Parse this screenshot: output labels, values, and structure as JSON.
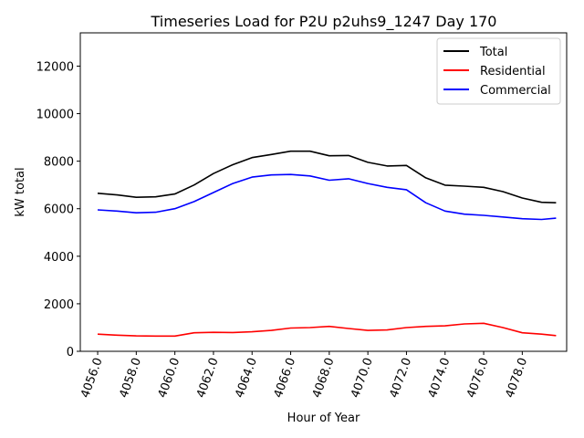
{
  "chart_data": {
    "type": "line",
    "title": "Timeseries Load for P2U p2uhs9_1247  Day 170",
    "xlabel": "Hour of Year",
    "ylabel": "kW total",
    "xlim": [
      4055.1,
      4080.3
    ],
    "ylim": [
      0,
      13400
    ],
    "xticks": [
      4056,
      4058,
      4060,
      4062,
      4064,
      4066,
      4068,
      4070,
      4072,
      4074,
      4076,
      4078
    ],
    "xtick_labels": [
      "4056.0",
      "4058.0",
      "4060.0",
      "4062.0",
      "4064.0",
      "4066.0",
      "4068.0",
      "4070.0",
      "4072.0",
      "4074.0",
      "4076.0",
      "4078.0"
    ],
    "yticks": [
      0,
      2000,
      4000,
      6000,
      8000,
      10000,
      12000
    ],
    "ytick_labels": [
      "0",
      "2000",
      "4000",
      "6000",
      "8000",
      "10000",
      "12000"
    ],
    "legend_position": "top-right",
    "x": [
      4056,
      4057,
      4058,
      4059,
      4060,
      4061,
      4062,
      4063,
      4064,
      4065,
      4066,
      4067,
      4068,
      4069,
      4070,
      4071,
      4072,
      4073,
      4074,
      4075,
      4076,
      4077,
      4078,
      4079,
      4079.75
    ],
    "series": [
      {
        "name": "Total",
        "color": "#000000",
        "values": [
          6650,
          6580,
          6480,
          6500,
          6620,
          7000,
          7480,
          7850,
          8150,
          8280,
          8420,
          8420,
          8230,
          8240,
          7950,
          7800,
          7820,
          7300,
          6990,
          6950,
          6900,
          6720,
          6450,
          6270,
          6250
        ]
      },
      {
        "name": "Residential",
        "color": "#ff0000",
        "values": [
          720,
          680,
          650,
          640,
          640,
          780,
          800,
          790,
          820,
          880,
          980,
          1000,
          1050,
          960,
          880,
          900,
          1000,
          1050,
          1070,
          1150,
          1180,
          1000,
          780,
          720,
          660
        ]
      },
      {
        "name": "Commercial",
        "color": "#0000ff",
        "values": [
          5950,
          5900,
          5830,
          5850,
          6000,
          6300,
          6680,
          7060,
          7330,
          7420,
          7440,
          7380,
          7200,
          7260,
          7060,
          6900,
          6800,
          6250,
          5900,
          5770,
          5720,
          5650,
          5580,
          5550,
          5600
        ]
      }
    ]
  }
}
